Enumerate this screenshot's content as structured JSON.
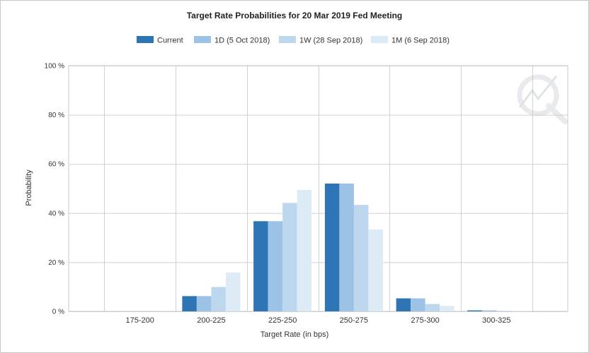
{
  "chart_data": {
    "type": "bar",
    "title": "Target Rate Probabilities for 20 Mar 2019 Fed Meeting",
    "xlabel": "Target Rate (in bps)",
    "ylabel": "Probability",
    "categories": [
      "175-200",
      "200-225",
      "225-250",
      "250-275",
      "275-300",
      "300-325"
    ],
    "ylim": [
      0,
      100
    ],
    "yticks": [
      "0 %",
      "20 %",
      "40 %",
      "60 %",
      "80 %",
      "100 %"
    ],
    "legend_position": "top-center",
    "grid": true,
    "series": [
      {
        "name": "Current",
        "color": "#2e75b6",
        "values": [
          0.0,
          6.2,
          36.7,
          52.0,
          5.3,
          0.4
        ]
      },
      {
        "name": "1D (5 Oct 2018)",
        "color": "#9cc3e6",
        "values": [
          0.0,
          6.2,
          36.7,
          52.0,
          5.3,
          0.4
        ]
      },
      {
        "name": "1W (28 Sep 2018)",
        "color": "#bdd7ee",
        "values": [
          0.0,
          9.9,
          44.1,
          43.3,
          3.0,
          0.2
        ]
      },
      {
        "name": "1M (6 Sep 2018)",
        "color": "#ddebf7",
        "values": [
          0.3,
          15.8,
          49.4,
          33.3,
          2.2,
          0.1
        ]
      }
    ]
  }
}
